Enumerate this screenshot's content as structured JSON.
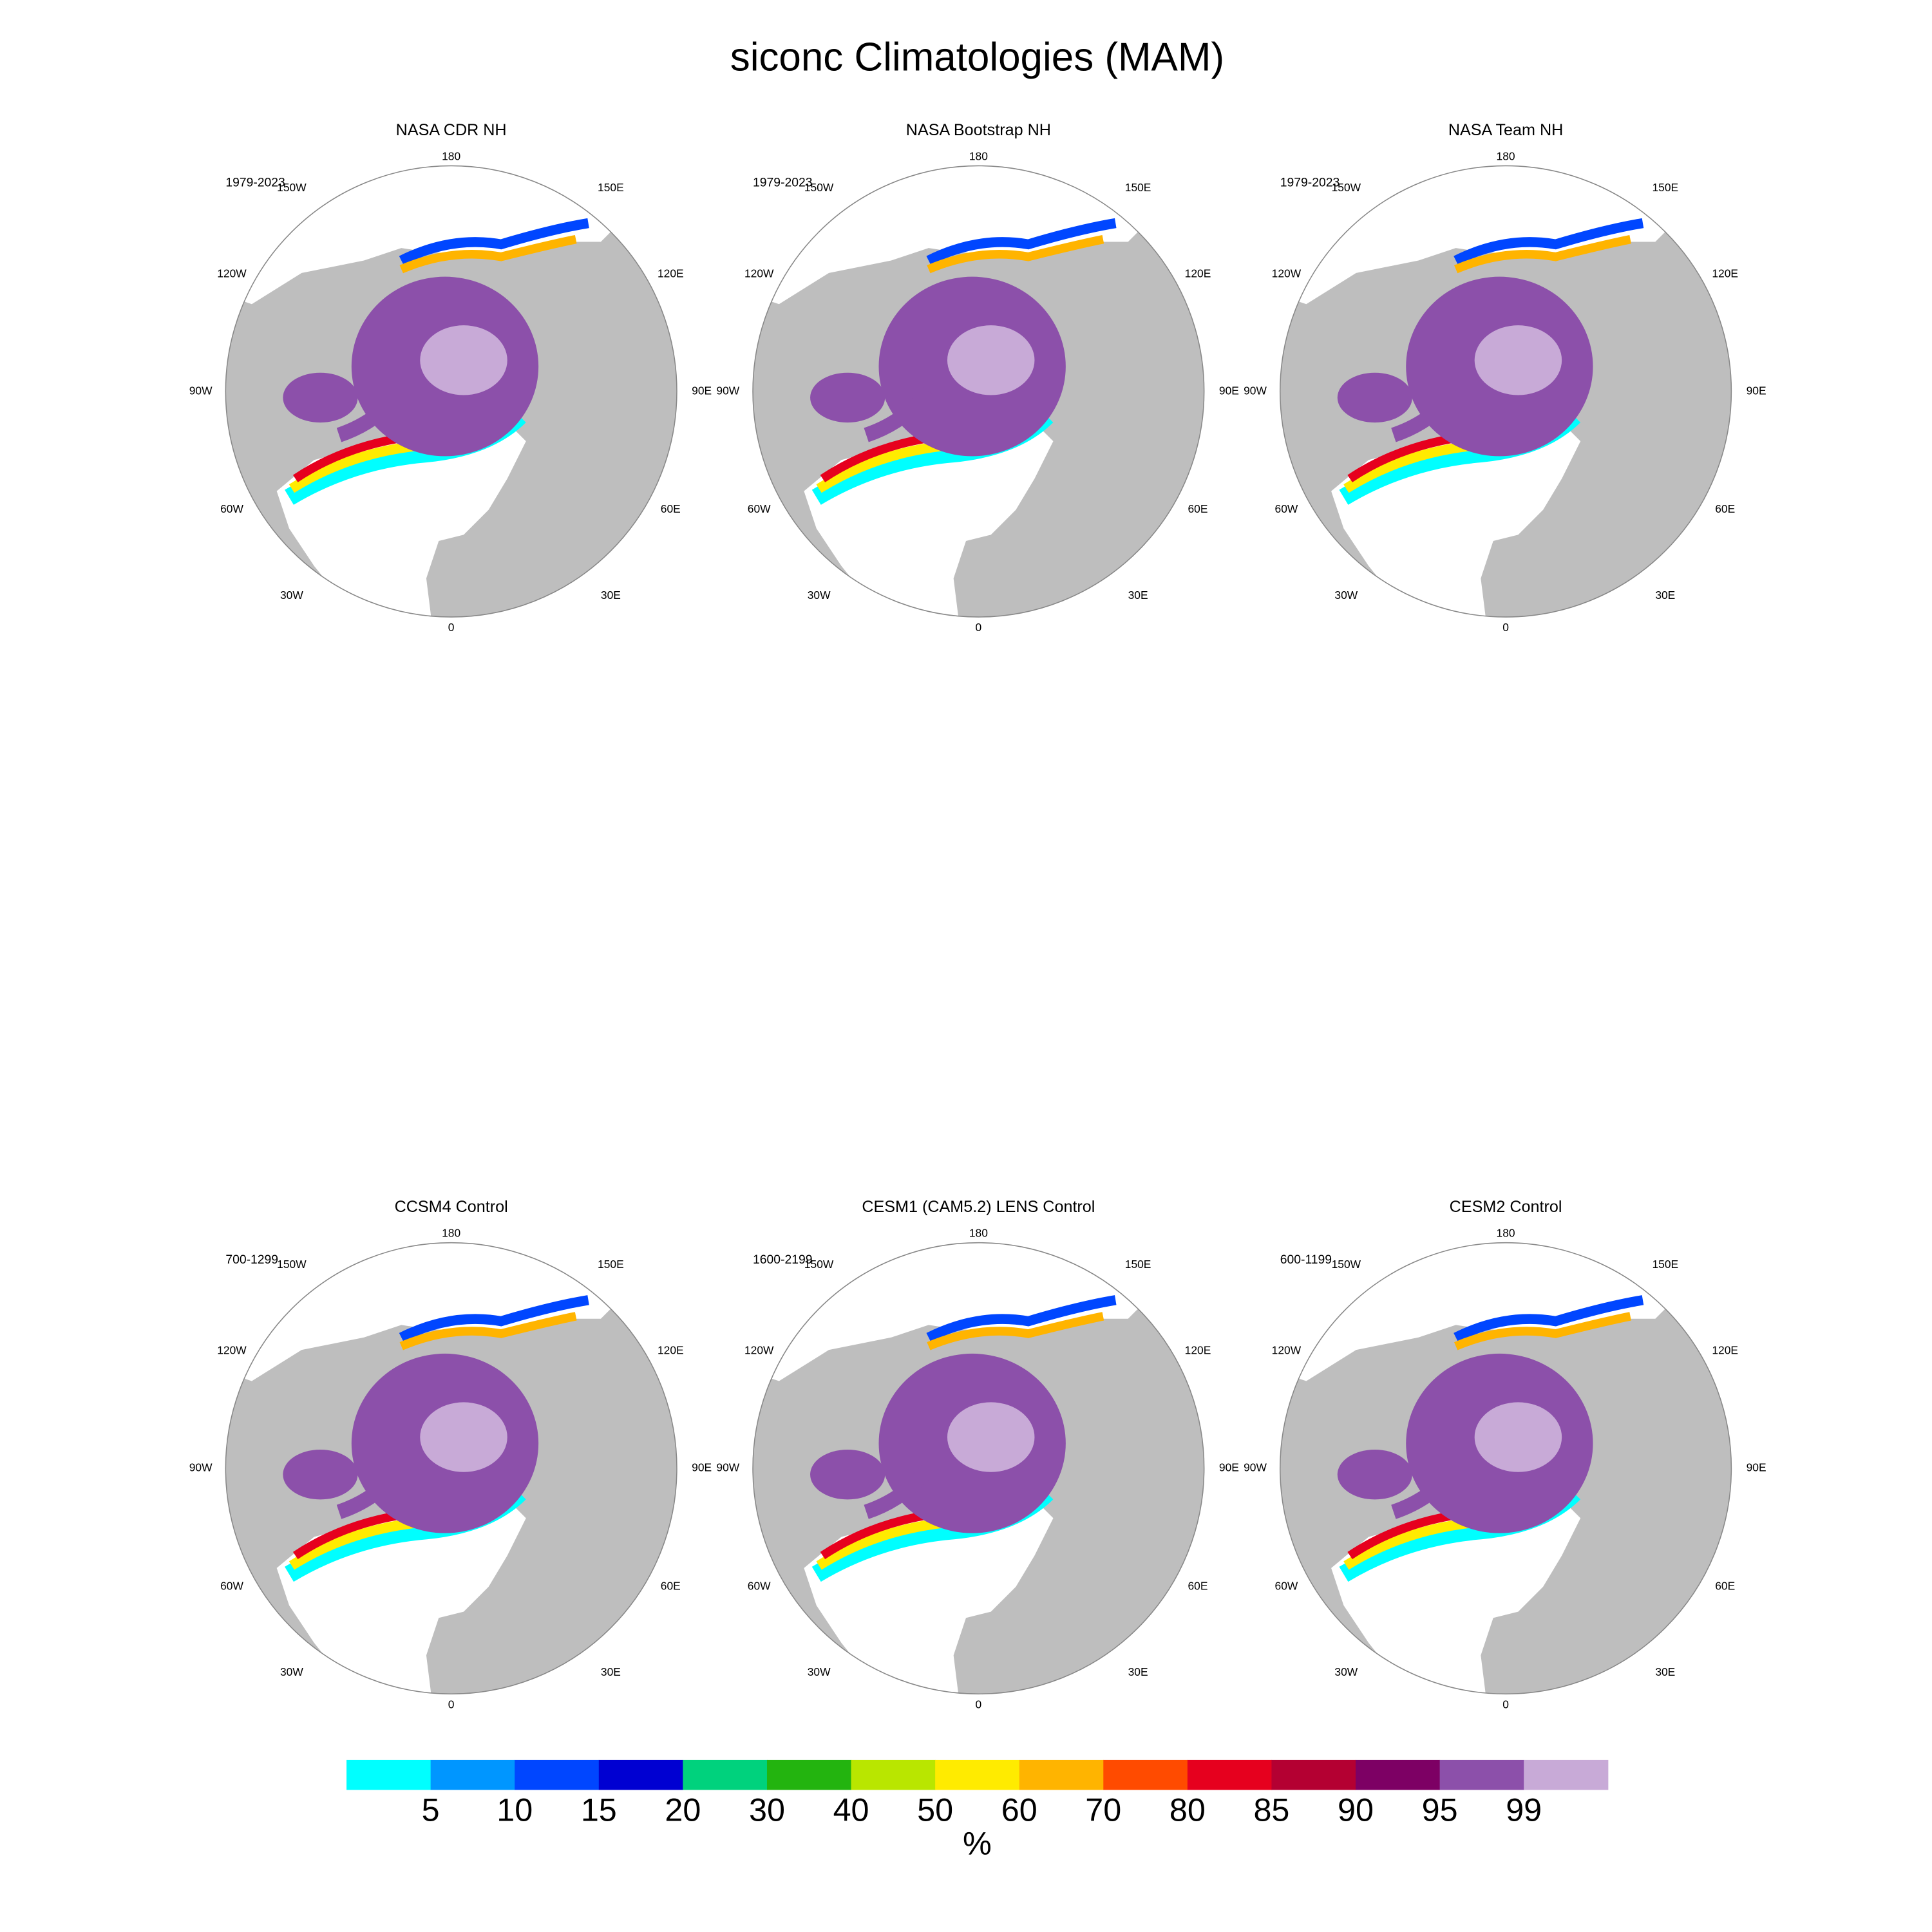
{
  "title": "siconc Climatologies (MAM)",
  "panels": [
    {
      "title": "NASA CDR NH",
      "period": "1979-2023"
    },
    {
      "title": "NASA Bootstrap NH",
      "period": "1979-2023"
    },
    {
      "title": "NASA Team NH",
      "period": "1979-2023"
    },
    {
      "title": "CCSM4 Control",
      "period": "700-1299"
    },
    {
      "title": "CESM1 (CAM5.2) LENS Control",
      "period": "1600-2199"
    },
    {
      "title": "CESM2 Control",
      "period": "600-1199"
    }
  ],
  "lon_labels": [
    "180",
    "150E",
    "120E",
    "90E",
    "60E",
    "30E",
    "0",
    "30W",
    "60W",
    "90W",
    "120W",
    "150W"
  ],
  "colorbar": {
    "colors": [
      "#00ffff",
      "#0096ff",
      "#0046ff",
      "#0000d2",
      "#00d27d",
      "#23b40f",
      "#b9e600",
      "#ffeb00",
      "#ffb400",
      "#ff4b00",
      "#e6001e",
      "#b40032",
      "#7d0064",
      "#8c50aa",
      "#c8aad7"
    ],
    "labels": [
      5,
      10,
      15,
      20,
      30,
      40,
      50,
      60,
      70,
      80,
      85,
      90,
      95,
      99
    ],
    "unit": "%"
  }
}
